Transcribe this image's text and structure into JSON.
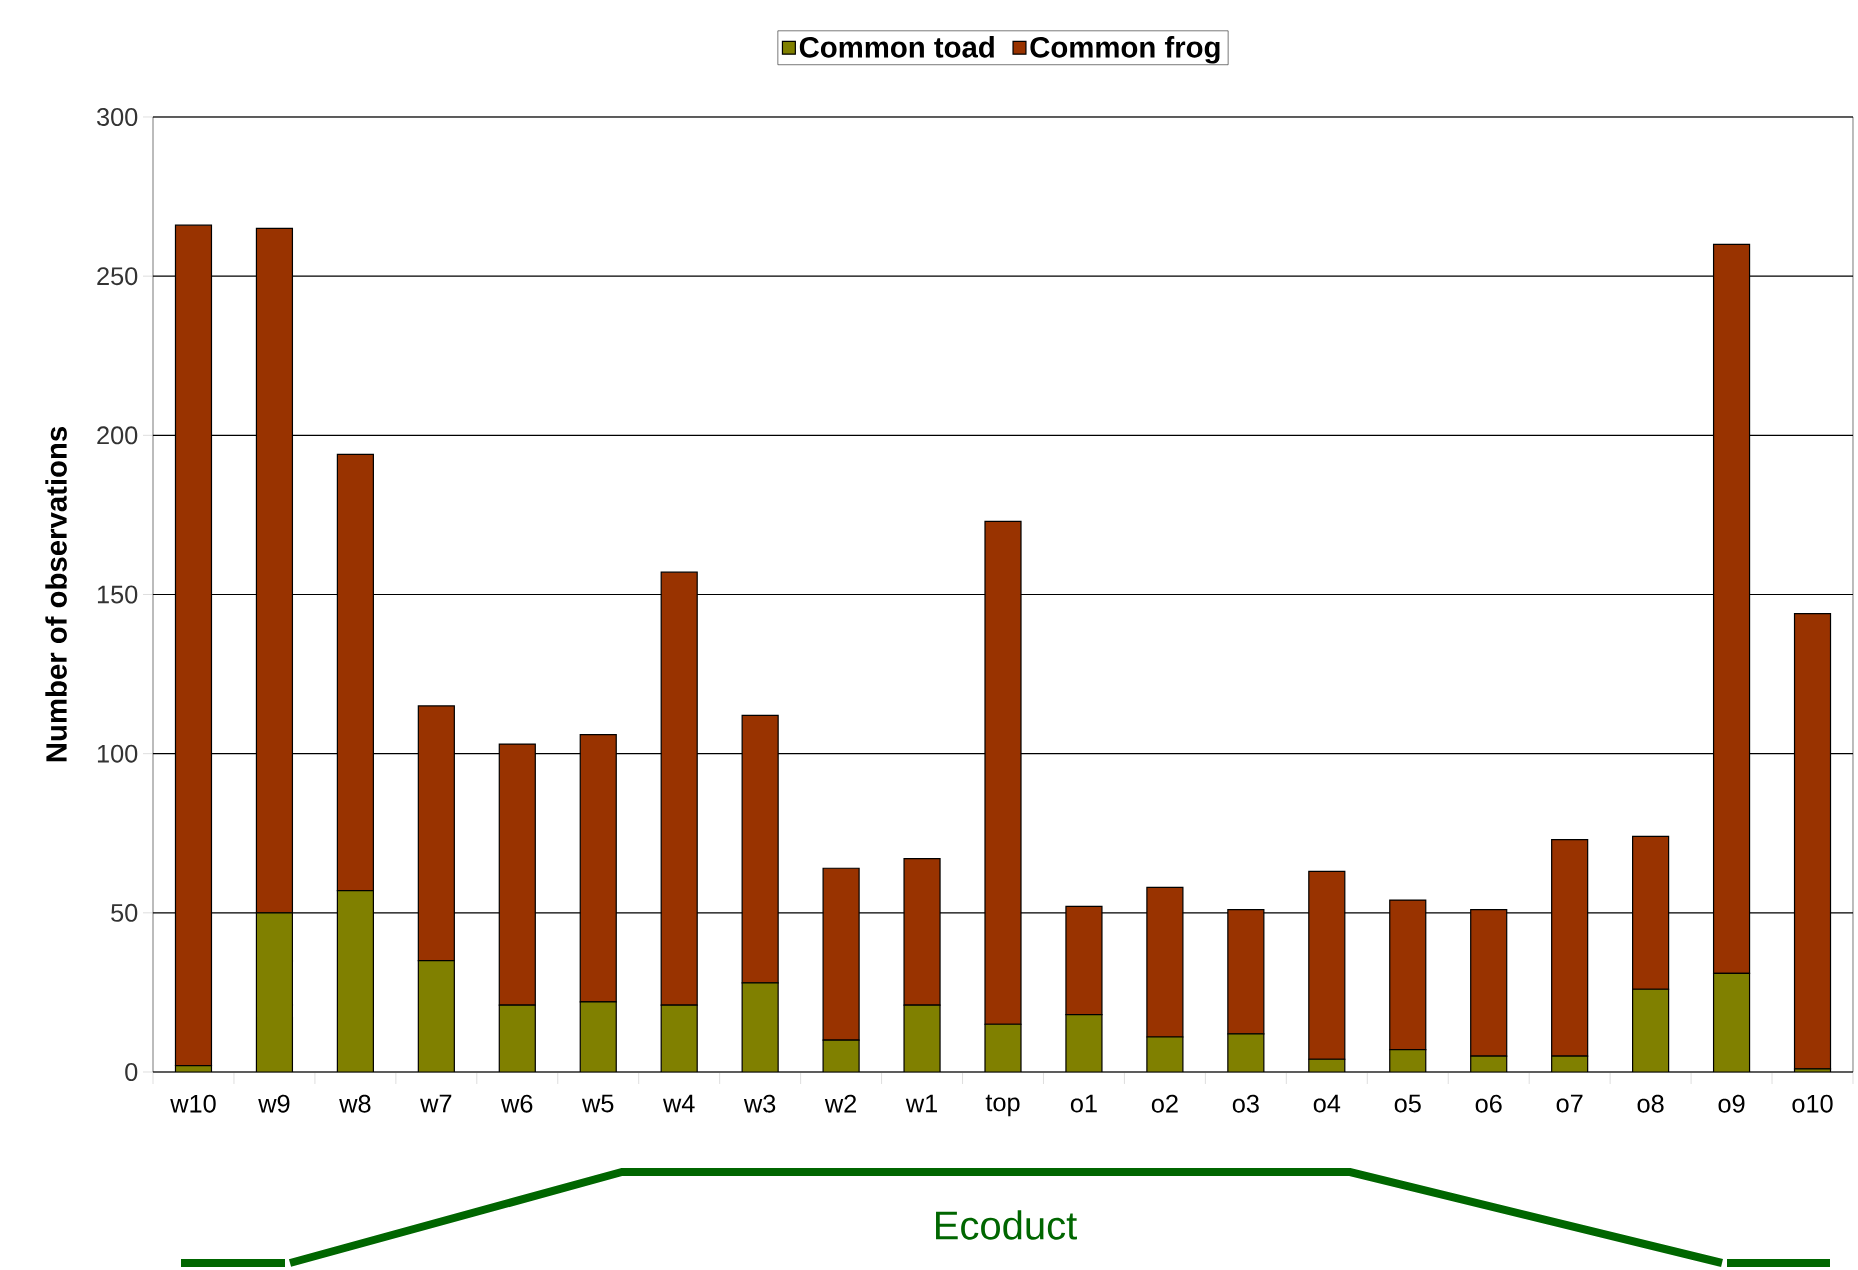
{
  "chart_data": {
    "type": "bar",
    "stacked": true,
    "ylabel": "Number of observations",
    "categories": [
      "w10",
      "w9",
      "w8",
      "w7",
      "w6",
      "w5",
      "w4",
      "w3",
      "w2",
      "w1",
      "top",
      "o1",
      "o2",
      "o3",
      "o4",
      "o5",
      "o6",
      "o7",
      "o8",
      "o9",
      "o10"
    ],
    "series": [
      {
        "name": "Common toad",
        "color": "#808000",
        "values": [
          2,
          50,
          57,
          35,
          21,
          22,
          21,
          28,
          10,
          21,
          15,
          18,
          11,
          12,
          4,
          7,
          5,
          5,
          26,
          31,
          1
        ]
      },
      {
        "name": "Common frog",
        "color": "#993300",
        "values": [
          264,
          215,
          137,
          80,
          82,
          84,
          136,
          84,
          54,
          46,
          158,
          34,
          47,
          39,
          59,
          47,
          46,
          68,
          48,
          229,
          143
        ]
      }
    ],
    "ylim": [
      0,
      300
    ],
    "yticks": [
      0,
      50,
      100,
      150,
      200,
      250,
      300
    ],
    "grid": "y",
    "legend": "top",
    "annotations": [
      "Ecoduct"
    ]
  }
}
